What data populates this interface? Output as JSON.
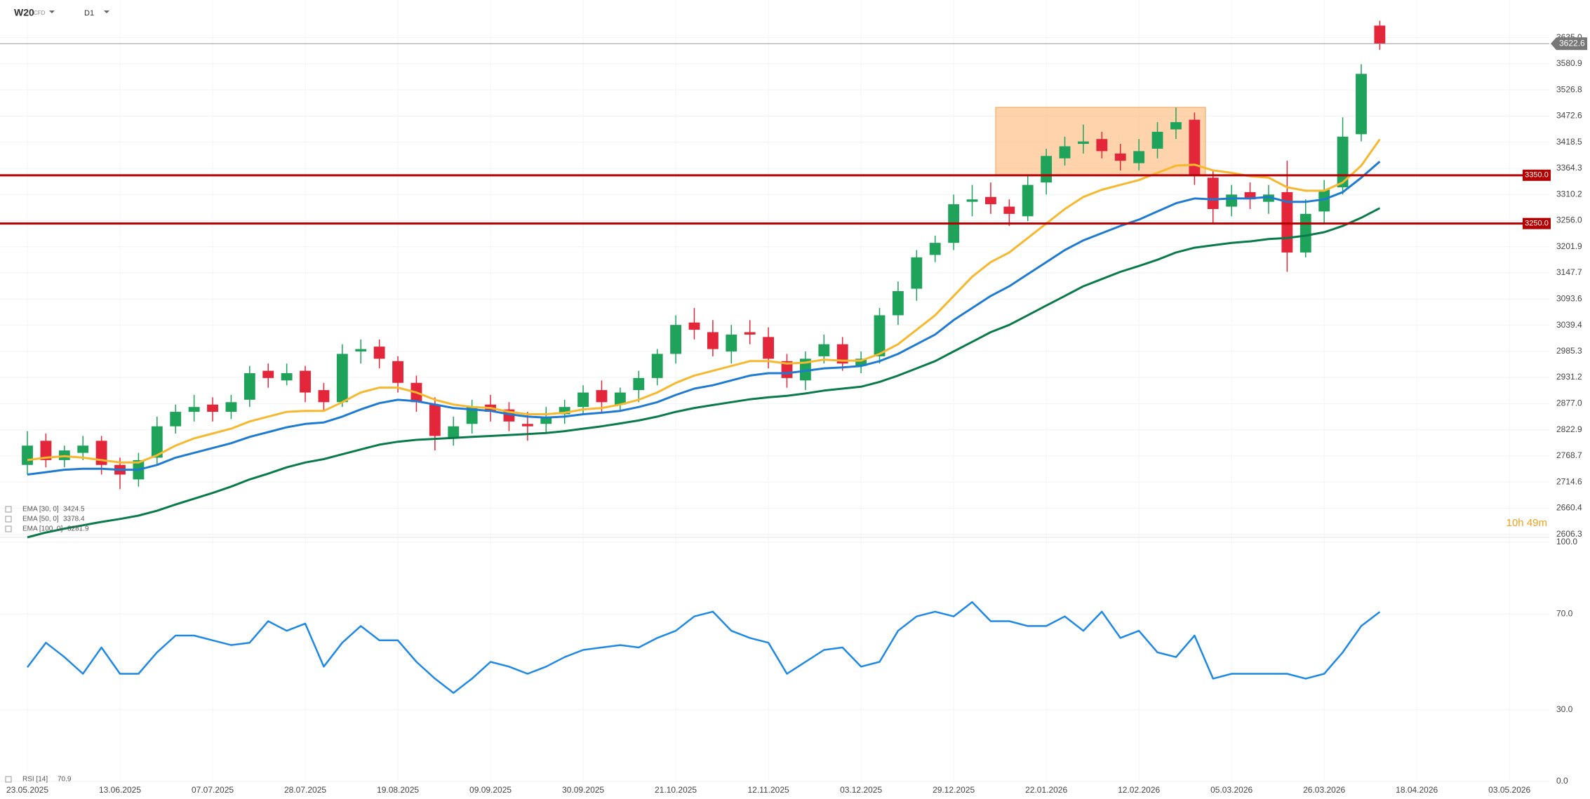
{
  "header": {
    "symbol": "W20",
    "kind": "CFD",
    "interval": "D1"
  },
  "chart_data": [
    {
      "type": "candlestick",
      "up_color": "#1fa35b",
      "down_color": "#e3263a",
      "open": [
        2750,
        2800,
        2760,
        2775,
        2800,
        2750,
        2720,
        2765,
        2830,
        2860,
        2875,
        2860,
        2885,
        2945,
        2925,
        2945,
        2905,
        2880,
        2985,
        2995,
        2965,
        2920,
        2875,
        2805,
        2835,
        2875,
        2865,
        2835,
        2835,
        2855,
        2870,
        2905,
        2875,
        2905,
        2930,
        2980,
        3045,
        3025,
        2985,
        3025,
        3015,
        2965,
        2925,
        2975,
        3000,
        2955,
        2975,
        3060,
        3115,
        3185,
        3210,
        3295,
        3305,
        3285,
        3265,
        3335,
        3385,
        3415,
        3425,
        3395,
        3375,
        3405,
        3445,
        3465,
        3345,
        3285,
        3315,
        3295,
        3315,
        3190,
        3275,
        3325,
        3435,
        3660,
        null,
        null,
        null,
        null,
        null,
        null,
        null,
        null,
        null
      ],
      "high": [
        2820,
        2815,
        2790,
        2810,
        2810,
        2765,
        2775,
        2850,
        2875,
        2895,
        2890,
        2895,
        2955,
        2960,
        2960,
        2955,
        2920,
        3000,
        3010,
        3010,
        2975,
        2935,
        2890,
        2850,
        2885,
        2895,
        2880,
        2860,
        2870,
        2885,
        2915,
        2925,
        2910,
        2945,
        2990,
        3060,
        3075,
        3050,
        3040,
        3050,
        3035,
        2980,
        2985,
        3020,
        3015,
        2985,
        3075,
        3130,
        3195,
        3225,
        3310,
        3330,
        3335,
        3300,
        3350,
        3405,
        3430,
        3455,
        3440,
        3415,
        3425,
        3460,
        3490,
        3480,
        3360,
        3330,
        3335,
        3330,
        3380,
        3300,
        3340,
        3470,
        3580,
        3670,
        null,
        null,
        null,
        null,
        null,
        null,
        null,
        null,
        null
      ],
      "low": [
        2730,
        2745,
        2745,
        2760,
        2730,
        2700,
        2705,
        2750,
        2815,
        2840,
        2840,
        2845,
        2870,
        2910,
        2915,
        2880,
        2860,
        2870,
        2960,
        2950,
        2900,
        2860,
        2780,
        2790,
        2815,
        2840,
        2820,
        2800,
        2815,
        2835,
        2855,
        2860,
        2860,
        2880,
        2915,
        2960,
        3010,
        2975,
        2960,
        3000,
        2950,
        2910,
        2905,
        2960,
        2945,
        2940,
        2960,
        3040,
        3090,
        3170,
        3195,
        3265,
        3270,
        3245,
        3255,
        3310,
        3370,
        3395,
        3385,
        3360,
        3360,
        3385,
        3425,
        3330,
        3250,
        3265,
        3280,
        3270,
        3150,
        3180,
        3250,
        3310,
        3420,
        3610,
        null,
        null,
        null,
        null,
        null,
        null,
        null,
        null,
        null
      ],
      "close": [
        2790,
        2760,
        2780,
        2790,
        2750,
        2730,
        2760,
        2830,
        2860,
        2870,
        2860,
        2880,
        2940,
        2930,
        2940,
        2900,
        2880,
        2980,
        2990,
        2970,
        2920,
        2880,
        2810,
        2830,
        2870,
        2860,
        2840,
        2830,
        2850,
        2870,
        2900,
        2880,
        2900,
        2930,
        2980,
        3040,
        3030,
        2990,
        3020,
        3020,
        2970,
        2930,
        2970,
        3000,
        2960,
        2970,
        3060,
        3110,
        3180,
        3210,
        3290,
        3300,
        3290,
        3270,
        3330,
        3390,
        3410,
        3420,
        3400,
        3380,
        3400,
        3440,
        3460,
        3350,
        3280,
        3310,
        3300,
        3310,
        3190,
        3270,
        3320,
        3430,
        3560,
        3622.6,
        null,
        null,
        null,
        null,
        null,
        null,
        null,
        null,
        null
      ],
      "series": [
        {
          "name": "EMA [50, 0]",
          "legend_value": 3378.4,
          "color": "#1f7bd1",
          "values": [
            2730,
            2735,
            2740,
            2742,
            2742,
            2740,
            2740,
            2750,
            2765,
            2775,
            2785,
            2795,
            2808,
            2818,
            2828,
            2835,
            2838,
            2850,
            2865,
            2878,
            2885,
            2882,
            2875,
            2868,
            2865,
            2862,
            2855,
            2850,
            2848,
            2850,
            2855,
            2858,
            2862,
            2870,
            2880,
            2895,
            2908,
            2915,
            2925,
            2935,
            2940,
            2940,
            2945,
            2950,
            2952,
            2955,
            2965,
            2980,
            3000,
            3020,
            3050,
            3075,
            3100,
            3120,
            3145,
            3170,
            3195,
            3215,
            3230,
            3245,
            3258,
            3275,
            3292,
            3302,
            3300,
            3302,
            3302,
            3305,
            3295,
            3295,
            3300,
            3315,
            3345,
            3378.4,
            null,
            null,
            null,
            null,
            null,
            null,
            null,
            null,
            null
          ]
        },
        {
          "name": "EMA [30, 0]",
          "legend_value": 3424.5,
          "color": "#f5b82e",
          "values": [
            2760,
            2765,
            2768,
            2765,
            2760,
            2755,
            2755,
            2770,
            2790,
            2805,
            2815,
            2825,
            2840,
            2850,
            2860,
            2862,
            2862,
            2880,
            2900,
            2910,
            2910,
            2900,
            2885,
            2875,
            2870,
            2868,
            2860,
            2855,
            2855,
            2858,
            2865,
            2868,
            2875,
            2885,
            2900,
            2920,
            2935,
            2945,
            2955,
            2965,
            2965,
            2960,
            2962,
            2968,
            2966,
            2966,
            2980,
            3000,
            3030,
            3060,
            3100,
            3140,
            3170,
            3190,
            3220,
            3250,
            3280,
            3305,
            3320,
            3330,
            3340,
            3355,
            3370,
            3372,
            3360,
            3355,
            3348,
            3345,
            3325,
            3318,
            3318,
            3335,
            3370,
            3424.5,
            null,
            null,
            null,
            null,
            null,
            null,
            null,
            null,
            null
          ]
        },
        {
          "name": "EMA [100, 0]",
          "legend_value": 3281.9,
          "color": "#0a7a4a",
          "values": [
            2600,
            2610,
            2618,
            2625,
            2632,
            2638,
            2645,
            2655,
            2668,
            2680,
            2692,
            2705,
            2720,
            2732,
            2745,
            2755,
            2762,
            2772,
            2782,
            2792,
            2798,
            2802,
            2804,
            2806,
            2808,
            2810,
            2812,
            2814,
            2816,
            2820,
            2825,
            2830,
            2836,
            2842,
            2850,
            2860,
            2868,
            2874,
            2880,
            2886,
            2890,
            2893,
            2898,
            2904,
            2908,
            2912,
            2922,
            2935,
            2950,
            2965,
            2985,
            3005,
            3025,
            3040,
            3060,
            3080,
            3100,
            3120,
            3135,
            3150,
            3162,
            3175,
            3190,
            3200,
            3205,
            3210,
            3213,
            3218,
            3220,
            3225,
            3232,
            3245,
            3262,
            3281.9,
            null,
            null,
            null,
            null,
            null,
            null,
            null,
            null,
            null
          ]
        }
      ],
      "hlines": [
        {
          "value": 3350,
          "label": "3350.0",
          "color": "#b30000"
        },
        {
          "value": 3250,
          "label": "3250.0",
          "color": "#b30000"
        }
      ],
      "last_price": 3622.6,
      "countdown": "10h 49m",
      "ylim": [
        2600,
        3713
      ],
      "yticks": [
        2606.3,
        2660.4,
        2714.6,
        2768.7,
        2822.9,
        {
          "value": 2877,
          "label": "2877.0"
        },
        2931.2,
        2985.3,
        3039.4,
        3093.6,
        3147.7,
        3201.9,
        {
          "value": 3256,
          "label": "3256.0"
        },
        3310.2,
        3364.3,
        3418.5,
        3472.6,
        3526.8,
        3580.9,
        {
          "value": 3635,
          "label": "3635.0"
        }
      ],
      "grid": true
    },
    {
      "type": "line",
      "categories": [
        "23.05.2025",
        null,
        null,
        null,
        null,
        "13.06.2025",
        null,
        null,
        null,
        null,
        "07.07.2025",
        null,
        null,
        null,
        null,
        "28.07.2025",
        null,
        null,
        null,
        null,
        "19.08.2025",
        null,
        null,
        null,
        null,
        "09.09.2025",
        null,
        null,
        null,
        null,
        "30.09.2025",
        null,
        null,
        null,
        null,
        "21.10.2025",
        null,
        null,
        null,
        null,
        "12.11.2025",
        null,
        null,
        null,
        null,
        "03.12.2025",
        null,
        null,
        null,
        null,
        "29.12.2025",
        null,
        null,
        null,
        null,
        "22.01.2026",
        null,
        null,
        null,
        null,
        "12.02.2026",
        null,
        null,
        null,
        null,
        "05.03.2026",
        null,
        null,
        null,
        null,
        "26.03.2026",
        null,
        null,
        null,
        null,
        "18.04.2026",
        null,
        null,
        null,
        null,
        "03.05.2026",
        null,
        null
      ],
      "series": [
        {
          "name": "RSI [14]",
          "legend_value": 70.9,
          "color": "#1e88e5",
          "values": [
            47.7,
            58,
            52,
            45,
            56,
            45,
            45,
            54,
            61,
            61,
            59,
            57,
            58,
            67,
            63,
            66,
            48,
            58,
            65,
            59,
            59,
            50,
            43,
            37,
            43,
            50,
            48,
            45,
            48,
            52,
            55,
            56,
            57,
            56,
            60,
            63,
            69,
            71,
            63,
            60,
            58,
            45,
            50,
            55,
            56,
            48,
            50,
            63,
            69,
            71,
            69,
            75,
            67,
            67,
            65,
            65,
            69,
            63,
            71,
            60,
            63,
            54,
            52,
            61,
            43,
            45,
            45,
            45,
            45,
            43,
            45,
            54,
            65,
            70.9,
            null,
            null,
            null,
            null,
            null,
            null,
            null,
            null,
            null
          ]
        }
      ],
      "ylim": [
        0,
        100
      ],
      "yticks": [
        {
          "value": 100,
          "label": "100.0"
        },
        {
          "value": 70,
          "label": "70.0"
        },
        {
          "value": 30,
          "label": "30.0"
        },
        {
          "value": 0,
          "label": "0.0"
        }
      ],
      "grid": true
    }
  ]
}
